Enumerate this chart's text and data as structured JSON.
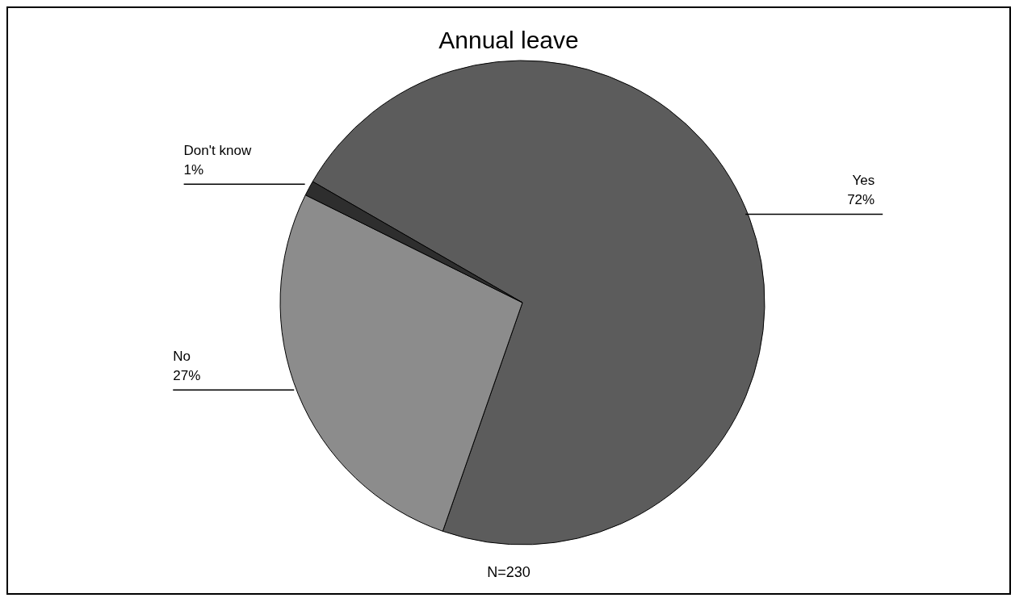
{
  "chart_data": {
    "type": "pie",
    "title": "Annual leave",
    "categories": [
      "Yes",
      "No",
      "Don't know"
    ],
    "values": [
      72,
      27,
      1
    ],
    "value_labels": [
      "72%",
      "27%",
      "1%"
    ],
    "colors": [
      "#5c5c5c",
      "#8c8c8c",
      "#2e2e2e"
    ],
    "legend": false,
    "annotations": [
      "N=230"
    ]
  }
}
